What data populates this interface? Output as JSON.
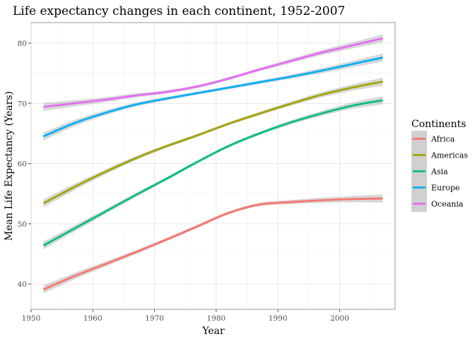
{
  "chart_data": {
    "type": "line",
    "title": "Life expectancy changes in each continent, 1952-2007",
    "xlabel": "Year",
    "ylabel": "Mean Life Expectancy (Years)",
    "xlim": [
      1950,
      2009
    ],
    "ylim": [
      35.8,
      83.4
    ],
    "x_ticks": [
      1950,
      1960,
      1970,
      1980,
      1990,
      2000
    ],
    "y_ticks": [
      40,
      50,
      60,
      70,
      80
    ],
    "grid": true,
    "confidence_band": true,
    "legend": {
      "title": "Continents",
      "position": "right"
    },
    "series": [
      {
        "name": "Africa",
        "color": "#F8766D",
        "x": [
          1952,
          1957,
          1962,
          1967,
          1972,
          1977,
          1982,
          1987,
          1992,
          1997,
          2002,
          2007
        ],
        "y": [
          39.1,
          41.3,
          43.3,
          45.3,
          47.4,
          49.6,
          51.8,
          53.2,
          53.6,
          53.9,
          54.1,
          54.2
        ]
      },
      {
        "name": "Americas",
        "color": "#A3A500",
        "x": [
          1952,
          1957,
          1962,
          1967,
          1972,
          1977,
          1982,
          1987,
          1992,
          1997,
          2002,
          2007
        ],
        "y": [
          53.4,
          56.1,
          58.6,
          60.9,
          62.9,
          64.7,
          66.6,
          68.3,
          69.9,
          71.4,
          72.6,
          73.6
        ]
      },
      {
        "name": "Asia",
        "color": "#00BF7D",
        "x": [
          1952,
          1957,
          1962,
          1967,
          1972,
          1977,
          1982,
          1987,
          1992,
          1997,
          2002,
          2007
        ],
        "y": [
          46.4,
          49.2,
          52.0,
          54.8,
          57.5,
          60.3,
          62.9,
          65.0,
          66.8,
          68.3,
          69.6,
          70.5
        ]
      },
      {
        "name": "Europe",
        "color": "#00B0F6",
        "x": [
          1952,
          1957,
          1962,
          1967,
          1972,
          1977,
          1982,
          1987,
          1992,
          1997,
          2002,
          2007
        ],
        "y": [
          64.5,
          66.7,
          68.4,
          69.8,
          70.8,
          71.7,
          72.6,
          73.5,
          74.4,
          75.4,
          76.5,
          77.6
        ]
      },
      {
        "name": "Oceania",
        "color": "#E76BF3",
        "x": [
          1952,
          1957,
          1962,
          1967,
          1972,
          1977,
          1982,
          1987,
          1992,
          1997,
          2002,
          2007
        ],
        "y": [
          69.4,
          70.0,
          70.6,
          71.3,
          71.9,
          72.8,
          74.1,
          75.6,
          77.0,
          78.4,
          79.6,
          80.8
        ]
      }
    ]
  }
}
